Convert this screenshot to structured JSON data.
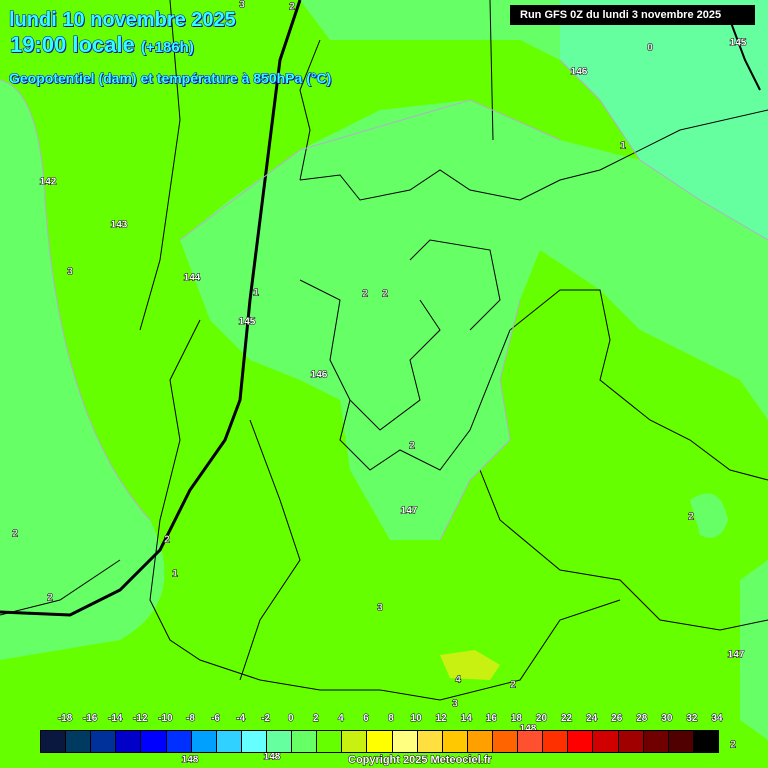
{
  "header": {
    "date": "lundi 10 novembre 2025",
    "time": "19:00 locale",
    "lead": "(+186h)",
    "parameter": "Geopotentiel (dam) et température à 850hPa (°C)",
    "run": "Run GFS 0Z du lundi 3 novembre 2025"
  },
  "colors": {
    "background": "#66ff00",
    "light_area": "#66ff66",
    "cool_area": "#66ffa0",
    "warm_spot": "#c8f010"
  },
  "geopotential_labels": [
    "142",
    "143",
    "144",
    "145",
    "146",
    "147",
    "146",
    "145",
    "147",
    "148",
    "148",
    "148"
  ],
  "temperature_labels": [
    "3",
    "2",
    "0",
    "1",
    "3",
    "1",
    "2",
    "2",
    "2",
    "2",
    "2",
    "1",
    "2",
    "3",
    "2",
    "4",
    "2",
    "3",
    "2"
  ],
  "legend": {
    "ticks": [
      "-18",
      "-16",
      "-14",
      "-12",
      "-10",
      "-8",
      "-6",
      "-4",
      "-2",
      "0",
      "2",
      "4",
      "6",
      "8",
      "10",
      "12",
      "14",
      "16",
      "18",
      "20",
      "22",
      "24",
      "26",
      "28",
      "30",
      "32",
      "34"
    ],
    "colors": [
      "#0a1840",
      "#003a60",
      "#00309a",
      "#0000c8",
      "#0000ff",
      "#0030ff",
      "#00a0ff",
      "#30d0ff",
      "#66ffff",
      "#66ffa0",
      "#66ff66",
      "#66ff00",
      "#c8f010",
      "#ffff00",
      "#ffff80",
      "#ffe040",
      "#ffc800",
      "#ffa000",
      "#ff6400",
      "#ff5030",
      "#ff3000",
      "#ff0000",
      "#d00000",
      "#a00000",
      "#700000",
      "#500000",
      "#000000"
    ]
  },
  "copyright": "Copyright 2025 Meteociel.fr"
}
